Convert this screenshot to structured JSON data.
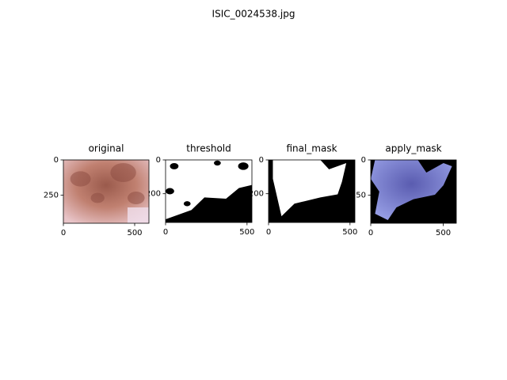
{
  "figure": {
    "title": "ISIC_0024538.jpg",
    "panels": [
      {
        "title": "original",
        "xlim": [
          0,
          600
        ],
        "ylim": [
          450,
          0
        ],
        "xticks": [
          0,
          500
        ],
        "yticks": [
          0,
          250
        ]
      },
      {
        "title": "threshold",
        "xlim": [
          0,
          530
        ],
        "ylim": [
          370,
          0
        ],
        "xticks": [
          0,
          500
        ],
        "yticks": [
          0,
          200
        ]
      },
      {
        "title": "final_mask",
        "xlim": [
          0,
          530
        ],
        "ylim": [
          370,
          0
        ],
        "xticks": [
          0,
          500
        ],
        "yticks": [
          0,
          200
        ]
      },
      {
        "title": "apply_mask",
        "xlim": [
          0,
          590
        ],
        "ylim": [
          450,
          0
        ],
        "xticks": [
          0,
          500
        ],
        "yticks": [
          0,
          250
        ]
      }
    ]
  }
}
